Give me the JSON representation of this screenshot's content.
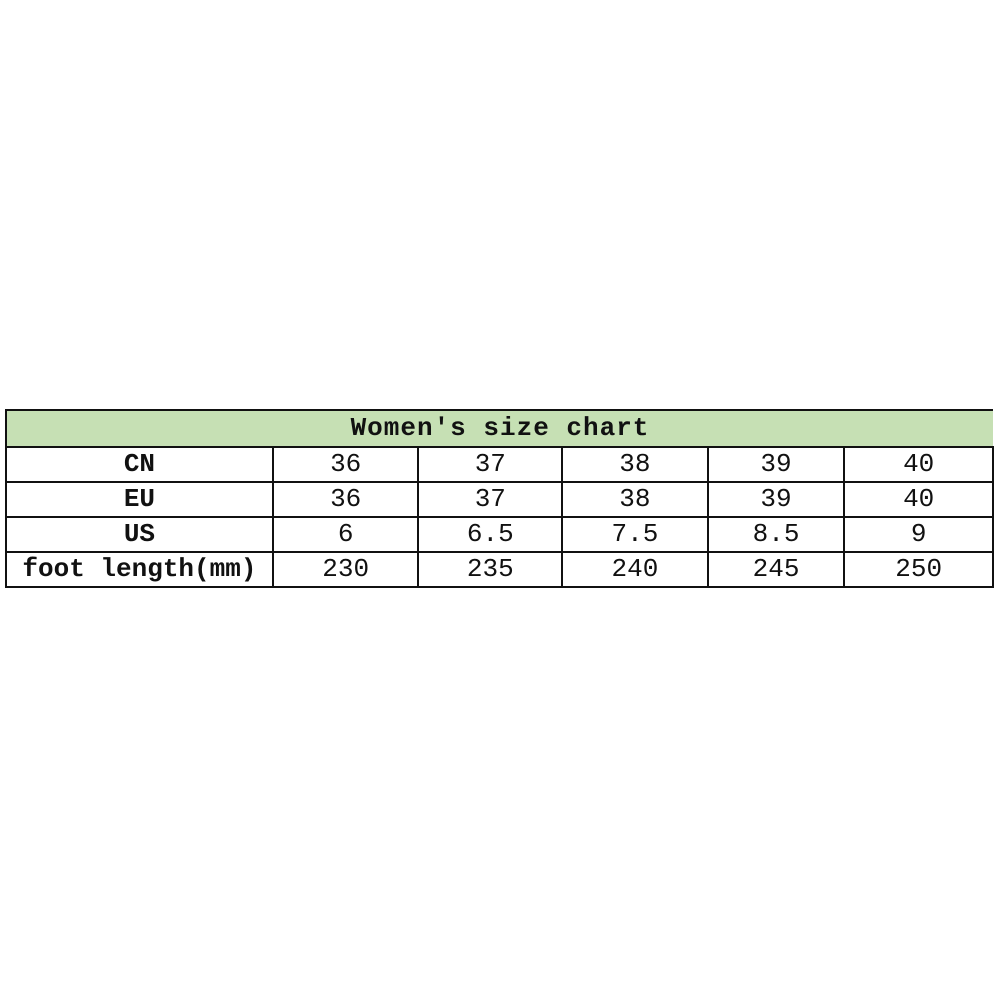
{
  "title": "Women's size chart",
  "header_fill": "#c6e0b4",
  "rows": [
    {
      "label": "CN",
      "values": [
        "36",
        "37",
        "38",
        "39",
        "40"
      ]
    },
    {
      "label": "EU",
      "values": [
        "36",
        "37",
        "38",
        "39",
        "40"
      ]
    },
    {
      "label": "US",
      "values": [
        "6",
        "6.5",
        "7.5",
        "8.5",
        "9"
      ]
    },
    {
      "label": "foot length(mm)",
      "values": [
        "230",
        "235",
        "240",
        "245",
        "250"
      ]
    }
  ]
}
